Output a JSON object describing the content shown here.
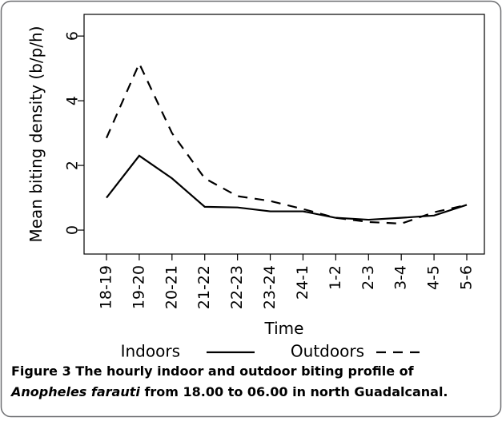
{
  "chart_data": {
    "type": "line",
    "x_label": "Time",
    "y_label": "Mean biting density (b/p/h)",
    "categories": [
      "18-19",
      "19-20",
      "20-21",
      "21-22",
      "22-23",
      "23-24",
      "24-1",
      "1-2",
      "2-3",
      "3-4",
      "4-5",
      "5-6"
    ],
    "series": [
      {
        "name": "Indoors",
        "color": "#000000",
        "dash": "solid",
        "values": [
          1.0,
          2.3,
          1.6,
          0.72,
          0.7,
          0.58,
          0.58,
          0.38,
          0.32,
          0.38,
          0.45,
          0.78
        ]
      },
      {
        "name": "Outdoors",
        "color": "#000000",
        "dash": "dashed",
        "values": [
          2.85,
          5.15,
          3.0,
          1.6,
          1.05,
          0.9,
          0.65,
          0.38,
          0.25,
          0.2,
          0.55,
          0.78
        ]
      }
    ],
    "ylim": [
      -0.74,
      6.67
    ],
    "yticks": [
      0,
      2,
      4,
      6
    ],
    "grid": false
  },
  "caption": {
    "label": "Figure 3",
    "text_1": "The hourly indoor and outdoor biting profile of",
    "species": "Anopheles farauti",
    "text_2": "from 18.00 to 06.00 in north Guadalcanal."
  }
}
